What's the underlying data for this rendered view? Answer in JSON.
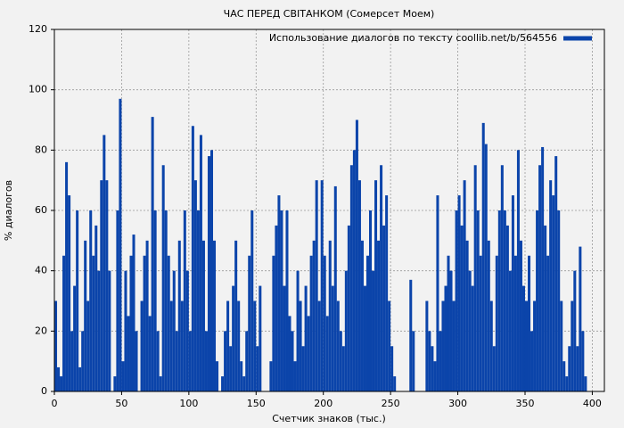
{
  "chart_data": {
    "type": "bar",
    "title": "ЧАС ПЕРЕД СВІТАНКОМ (Сомерсет Моем)",
    "xlabel": "Счетчик знаков (тыс.)",
    "ylabel": "% диалогов",
    "series": [
      {
        "name": "Использование диалогов по тексту coollib.net/b/564556",
        "color": "#0b44aa",
        "x": [
          0,
          2,
          4,
          6,
          8,
          10,
          12,
          14,
          16,
          18,
          20,
          22,
          24,
          26,
          28,
          30,
          32,
          34,
          36,
          38,
          40,
          42,
          44,
          46,
          48,
          50,
          52,
          54,
          56,
          58,
          60,
          62,
          64,
          66,
          68,
          70,
          72,
          74,
          76,
          78,
          80,
          82,
          84,
          86,
          88,
          90,
          92,
          94,
          96,
          98,
          100,
          102,
          104,
          106,
          108,
          110,
          112,
          114,
          116,
          118,
          120,
          122,
          124,
          126,
          128,
          130,
          132,
          134,
          136,
          138,
          140,
          142,
          144,
          146,
          148,
          150,
          152,
          154,
          156,
          158,
          160,
          162,
          164,
          166,
          168,
          170,
          172,
          174,
          176,
          178,
          180,
          182,
          184,
          186,
          188,
          190,
          192,
          194,
          196,
          198,
          200,
          202,
          204,
          206,
          208,
          210,
          212,
          214,
          216,
          218,
          220,
          222,
          224,
          226,
          228,
          230,
          232,
          234,
          236,
          238,
          240,
          242,
          244,
          246,
          248,
          250,
          252,
          254,
          256,
          258,
          260,
          262,
          264,
          266,
          268,
          270,
          272,
          274,
          276,
          278,
          280,
          282,
          284,
          286,
          288,
          290,
          292,
          294,
          296,
          298,
          300,
          302,
          304,
          306,
          308,
          310,
          312,
          314,
          316,
          318,
          320,
          322,
          324,
          326,
          328,
          330,
          332,
          334,
          336,
          338,
          340,
          342,
          344,
          346,
          348,
          350,
          352,
          354,
          356,
          358,
          360,
          362,
          364,
          366,
          368,
          370,
          372,
          374,
          376,
          378,
          380,
          382,
          384,
          386,
          388,
          390,
          392,
          394
        ],
        "values": [
          30,
          8,
          5,
          45,
          76,
          65,
          20,
          35,
          60,
          8,
          20,
          50,
          30,
          60,
          45,
          55,
          40,
          70,
          85,
          70,
          40,
          0,
          5,
          60,
          97,
          10,
          40,
          25,
          45,
          52,
          20,
          0,
          30,
          45,
          50,
          25,
          91,
          60,
          20,
          5,
          75,
          60,
          45,
          30,
          40,
          20,
          50,
          30,
          60,
          40,
          20,
          88,
          70,
          60,
          85,
          50,
          20,
          78,
          80,
          50,
          10,
          0,
          5,
          20,
          30,
          15,
          35,
          50,
          30,
          10,
          5,
          20,
          45,
          60,
          30,
          15,
          35,
          0,
          0,
          0,
          10,
          45,
          55,
          65,
          60,
          35,
          60,
          25,
          20,
          10,
          40,
          30,
          15,
          35,
          25,
          45,
          50,
          70,
          30,
          70,
          45,
          25,
          50,
          35,
          68,
          30,
          20,
          15,
          40,
          55,
          75,
          80,
          90,
          70,
          50,
          35,
          45,
          60,
          40,
          70,
          50,
          75,
          55,
          65,
          30,
          15,
          5,
          0,
          0,
          0,
          0,
          0,
          37,
          20,
          0,
          0,
          0,
          0,
          30,
          20,
          15,
          10,
          65,
          20,
          30,
          35,
          45,
          40,
          30,
          60,
          65,
          55,
          70,
          50,
          40,
          35,
          75,
          60,
          45,
          89,
          82,
          50,
          30,
          15,
          45,
          60,
          75,
          60,
          55,
          40,
          65,
          45,
          80,
          50,
          35,
          30,
          45,
          20,
          30,
          60,
          75,
          81,
          55,
          45,
          70,
          65,
          78,
          60,
          30,
          10,
          5,
          15,
          30,
          40,
          15,
          48,
          20,
          5
        ]
      }
    ],
    "xlim": [
      0,
      409
    ],
    "xticks": [
      0,
      50,
      100,
      150,
      200,
      250,
      300,
      350,
      400
    ],
    "ylim": [
      0,
      120
    ],
    "yticks": [
      0,
      20,
      40,
      60,
      80,
      100,
      120
    ],
    "grid": true,
    "legend": "upper right"
  }
}
